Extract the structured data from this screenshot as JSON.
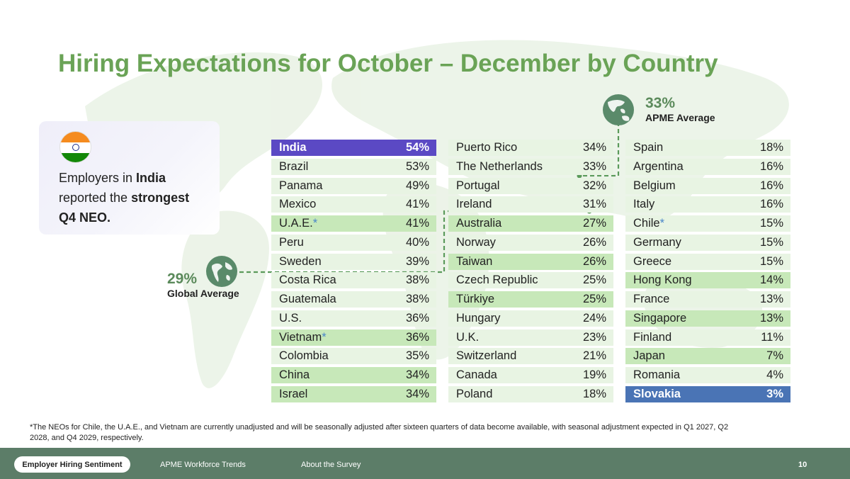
{
  "title": "Hiring Expectations for October – December by Country",
  "callout": {
    "line1_pre": "Employers in ",
    "line1_bold": "India",
    "line2_pre": "reported the ",
    "line2_bold": "strongest",
    "line3_bold": "Q4 NEO."
  },
  "global_avg": {
    "value": "29%",
    "label": "Global Average"
  },
  "apme_avg": {
    "value": "33%",
    "label": "APME Average"
  },
  "colors": {
    "title_green": "#6aa356",
    "india_highlight": "#5b49c4",
    "slovakia_highlight": "#4a74b5",
    "apme_row": "#c7e8b9",
    "row": "#e8f4e3",
    "footer": "#5c7d68"
  },
  "chart_data": {
    "type": "table",
    "columns": [
      [
        {
          "country": "India",
          "value": "54%",
          "style": "hl-india"
        },
        {
          "country": "Brazil",
          "value": "53%",
          "style": "light"
        },
        {
          "country": "Panama",
          "value": "49%",
          "style": "light"
        },
        {
          "country": "Mexico",
          "value": "41%",
          "style": "light"
        },
        {
          "country": "U.A.E.",
          "asterisk": "*",
          "value": "41%",
          "style": "mid"
        },
        {
          "country": "Peru",
          "value": "40%",
          "style": "light"
        },
        {
          "country": "Sweden",
          "value": "39%",
          "style": "light"
        },
        {
          "country": "Costa Rica",
          "value": "38%",
          "style": "light"
        },
        {
          "country": "Guatemala",
          "value": "38%",
          "style": "light"
        },
        {
          "country": "U.S.",
          "value": "36%",
          "style": "light"
        },
        {
          "country": "Vietnam",
          "asterisk": "*",
          "value": "36%",
          "style": "mid"
        },
        {
          "country": "Colombia",
          "value": "35%",
          "style": "light"
        },
        {
          "country": "China",
          "value": "34%",
          "style": "mid"
        },
        {
          "country": "Israel",
          "value": "34%",
          "style": "mid"
        }
      ],
      [
        {
          "country": "Puerto Rico",
          "value": "34%",
          "style": "light"
        },
        {
          "country": "The Netherlands",
          "value": "33%",
          "style": "light"
        },
        {
          "country": "Portugal",
          "value": "32%",
          "style": "light"
        },
        {
          "country": "Ireland",
          "value": "31%",
          "style": "light"
        },
        {
          "country": "Australia",
          "value": "27%",
          "style": "mid"
        },
        {
          "country": "Norway",
          "value": "26%",
          "style": "light"
        },
        {
          "country": "Taiwan",
          "value": "26%",
          "style": "mid"
        },
        {
          "country": "Czech Republic",
          "value": "25%",
          "style": "light"
        },
        {
          "country": "Türkiye",
          "value": "25%",
          "style": "mid"
        },
        {
          "country": "Hungary",
          "value": "24%",
          "style": "light"
        },
        {
          "country": "U.K.",
          "value": "23%",
          "style": "light"
        },
        {
          "country": "Switzerland",
          "value": "21%",
          "style": "light"
        },
        {
          "country": "Canada",
          "value": "19%",
          "style": "light"
        },
        {
          "country": "Poland",
          "value": "18%",
          "style": "light"
        }
      ],
      [
        {
          "country": "Spain",
          "value": "18%",
          "style": "light"
        },
        {
          "country": "Argentina",
          "value": "16%",
          "style": "light"
        },
        {
          "country": "Belgium",
          "value": "16%",
          "style": "light"
        },
        {
          "country": "Italy",
          "value": "16%",
          "style": "light"
        },
        {
          "country": "Chile",
          "asterisk": "*",
          "value": "15%",
          "style": "light"
        },
        {
          "country": "Germany",
          "value": "15%",
          "style": "light"
        },
        {
          "country": "Greece",
          "value": "15%",
          "style": "light"
        },
        {
          "country": "Hong Kong",
          "value": "14%",
          "style": "mid"
        },
        {
          "country": "France",
          "value": "13%",
          "style": "light"
        },
        {
          "country": "Singapore",
          "value": "13%",
          "style": "mid"
        },
        {
          "country": "Finland",
          "value": "11%",
          "style": "light"
        },
        {
          "country": "Japan",
          "value": "7%",
          "style": "mid"
        },
        {
          "country": "Romania",
          "value": "4%",
          "style": "light"
        },
        {
          "country": "Slovakia",
          "value": "3%",
          "style": "hl-slovakia"
        }
      ]
    ]
  },
  "footnote": "*The NEOs for Chile, the U.A.E., and Vietnam are currently unadjusted and will be seasonally adjusted after sixteen quarters of data become available, with seasonal adjustment expected in Q1 2027, Q2 2028, and Q4 2029, respectively.",
  "footer": {
    "tabs": [
      "Employer Hiring Sentiment",
      "APME Workforce Trends",
      "About the Survey"
    ],
    "page_number": "10"
  }
}
